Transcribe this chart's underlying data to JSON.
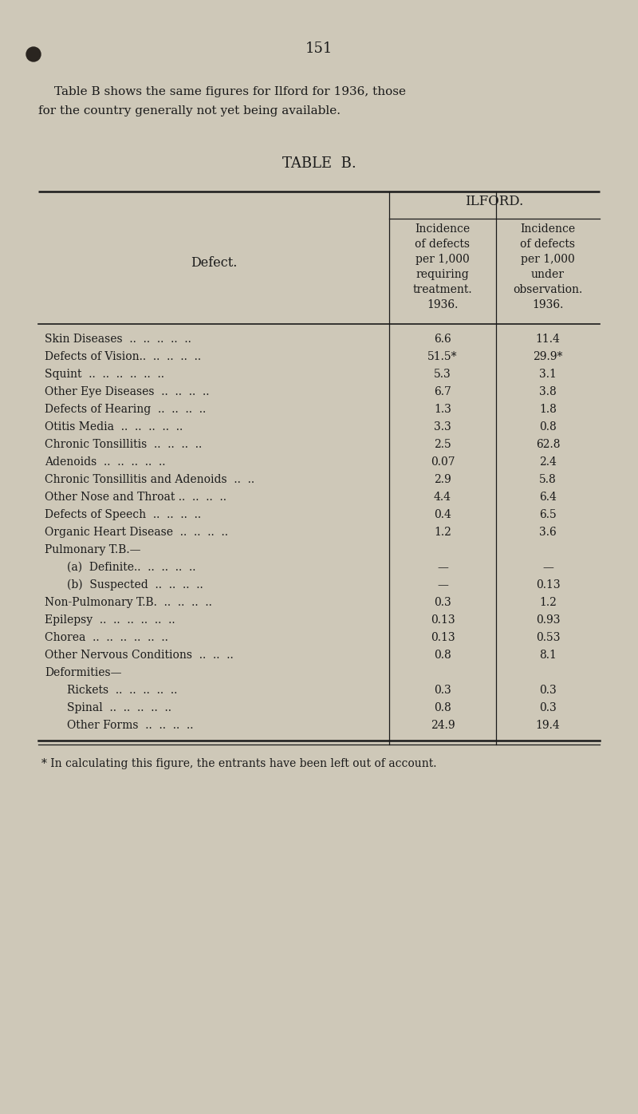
{
  "page_number": "151",
  "intro_line1": "Table B shows the same figures for Ilford for 1936, those",
  "intro_line2": "for the country generally not yet being available.",
  "table_title": "TABLE  B.",
  "col_header_main": "ILFORD.",
  "col_header_left": "Defect.",
  "col_header_col1": "Incidence\nof defects\nper 1,000\nrequiring\ntreatment.\n1936.",
  "col_header_col2": "Incidence\nof defects\nper 1,000\nunder\nobservation.\n1936.",
  "rows": [
    {
      "defect": "Skin Diseases  ..  ..  ..  ..  ..",
      "indent": 0,
      "val1": "6.6",
      "val2": "11.4"
    },
    {
      "defect": "Defects of Vision..  ..  ..  ..  ..",
      "indent": 0,
      "val1": "51.5*",
      "val2": "29.9*"
    },
    {
      "defect": "Squint  ..  ..  ..  ..  ..  ..",
      "indent": 0,
      "val1": "5.3",
      "val2": "3.1"
    },
    {
      "defect": "Other Eye Diseases  ..  ..  ..  ..",
      "indent": 0,
      "val1": "6.7",
      "val2": "3.8"
    },
    {
      "defect": "Defects of Hearing  ..  ..  ..  ..",
      "indent": 0,
      "val1": "1.3",
      "val2": "1.8"
    },
    {
      "defect": "Otitis Media  ..  ..  ..  ..  ..",
      "indent": 0,
      "val1": "3.3",
      "val2": "0.8"
    },
    {
      "defect": "Chronic Tonsillitis  ..  ..  ..  ..",
      "indent": 0,
      "val1": "2.5",
      "val2": "62.8"
    },
    {
      "defect": "Adenoids  ..  ..  ..  ..  ..",
      "indent": 0,
      "val1": "0.07",
      "val2": "2.4"
    },
    {
      "defect": "Chronic Tonsillitis and Adenoids  ..  ..",
      "indent": 0,
      "val1": "2.9",
      "val2": "5.8"
    },
    {
      "defect": "Other Nose and Throat ..  ..  ..  ..",
      "indent": 0,
      "val1": "4.4",
      "val2": "6.4"
    },
    {
      "defect": "Defects of Speech  ..  ..  ..  ..",
      "indent": 0,
      "val1": "0.4",
      "val2": "6.5"
    },
    {
      "defect": "Organic Heart Disease  ..  ..  ..  ..",
      "indent": 0,
      "val1": "1.2",
      "val2": "3.6"
    },
    {
      "defect": "Pulmonary T.B.—",
      "indent": 0,
      "val1": "",
      "val2": ""
    },
    {
      "defect": "(a)  Definite..  ..  ..  ..  ..",
      "indent": 1,
      "val1": "—",
      "val2": "—"
    },
    {
      "defect": "(b)  Suspected  ..  ..  ..  ..",
      "indent": 1,
      "val1": "—",
      "val2": "0.13"
    },
    {
      "defect": "Non-Pulmonary T.B.  ..  ..  ..  ..",
      "indent": 0,
      "val1": "0.3",
      "val2": "1.2"
    },
    {
      "defect": "Epilepsy  ..  ..  ..  ..  ..  ..",
      "indent": 0,
      "val1": "0.13",
      "val2": "0.93"
    },
    {
      "defect": "Chorea  ..  ..  ..  ..  ..  ..",
      "indent": 0,
      "val1": "0.13",
      "val2": "0.53"
    },
    {
      "defect": "Other Nervous Conditions  ..  ..  ..",
      "indent": 0,
      "val1": "0.8",
      "val2": "8.1"
    },
    {
      "defect": "Deformities—",
      "indent": 0,
      "val1": "",
      "val2": ""
    },
    {
      "defect": "Rickets  ..  ..  ..  ..  ..",
      "indent": 1,
      "val1": "0.3",
      "val2": "0.3"
    },
    {
      "defect": "Spinal  ..  ..  ..  ..  ..",
      "indent": 1,
      "val1": "0.8",
      "val2": "0.3"
    },
    {
      "defect": "Other Forms  ..  ..  ..  ..",
      "indent": 1,
      "val1": "24.9",
      "val2": "19.4"
    }
  ],
  "footnote": "* In calculating this figure, the entrants have been left out of account.",
  "bg_color": "#cec8b8",
  "text_color": "#1a1a1a"
}
